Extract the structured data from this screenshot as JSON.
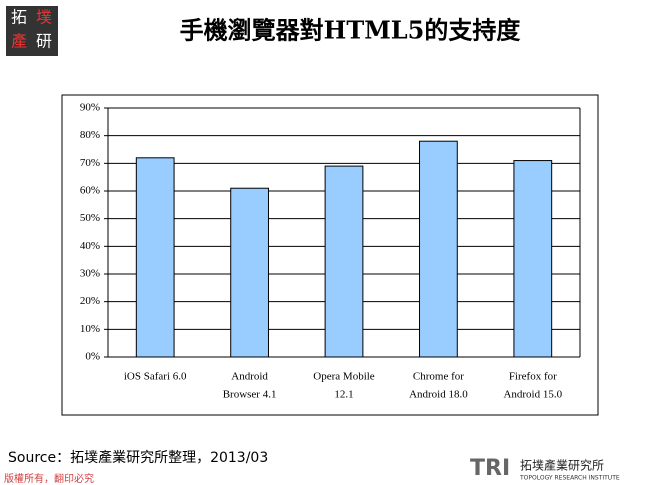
{
  "logo": {
    "lines": [
      "拓",
      "墣",
      "產",
      "研"
    ]
  },
  "chart_data": {
    "type": "bar",
    "title": "手機瀏覽器對HTML5的支持度",
    "categories": [
      [
        "iOS Safari 6.0"
      ],
      [
        "Android",
        "Browser 4.1"
      ],
      [
        "Opera Mobile",
        "12.1"
      ],
      [
        "Chrome for",
        "Android 18.0"
      ],
      [
        "Firefox for",
        "Android 15.0"
      ]
    ],
    "values": [
      72,
      61,
      69,
      78,
      71
    ],
    "color": "#99ccff",
    "ylim": [
      0,
      90
    ],
    "yticks": [
      {
        "value": 0,
        "label": "0%"
      },
      {
        "value": 10,
        "label": "10%"
      },
      {
        "value": 20,
        "label": "20%"
      },
      {
        "value": 30,
        "label": "30%"
      },
      {
        "value": 40,
        "label": "40%"
      },
      {
        "value": 50,
        "label": "50%"
      },
      {
        "value": 60,
        "label": "60%"
      },
      {
        "value": 70,
        "label": "70%"
      },
      {
        "value": 80,
        "label": "80%"
      },
      {
        "value": 90,
        "label": "90%"
      }
    ],
    "grid": true
  },
  "source": "Source：拓墣產業研究所整理，2013/03",
  "footer": {
    "copyright": "版權所有，翻印必究",
    "brand": "TRI",
    "institute": "拓墣產業研究所",
    "institute_en": "TOPOLOGY RESEARCH INSTITUTE"
  }
}
